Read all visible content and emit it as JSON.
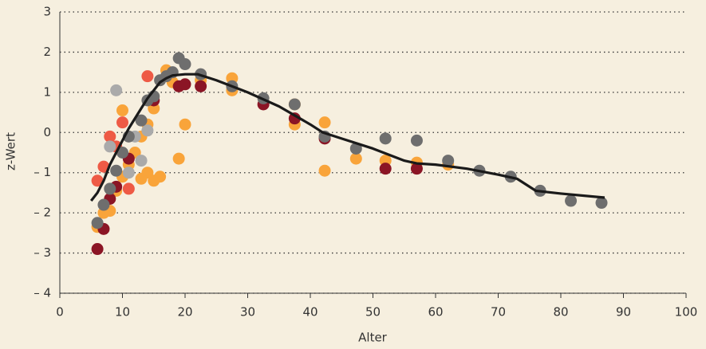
{
  "chart_data": {
    "type": "scatter",
    "x_label": "Alter",
    "y_label": "z-Wert",
    "xlim": [
      0,
      100
    ],
    "xticks": [
      0,
      10,
      20,
      30,
      40,
      50,
      60,
      70,
      80,
      90,
      100
    ],
    "ylim": [
      -4,
      3
    ],
    "yticks": [
      {
        "value": -4,
        "label": "– 4"
      },
      {
        "value": -3,
        "label": "– 3"
      },
      {
        "value": -2,
        "label": "– 2"
      },
      {
        "value": -1,
        "label": "– 1"
      },
      0,
      1,
      2,
      3
    ],
    "grid": true,
    "series": [
      {
        "style": "dots",
        "color": "#f9a43a",
        "x": [
          6,
          7,
          8,
          9,
          10,
          11,
          12,
          13,
          14,
          15,
          16,
          17,
          18,
          19,
          20,
          22.5,
          27.5,
          27.5,
          37.5,
          37.5,
          42.3,
          42.3,
          47.3,
          52,
          57,
          62,
          13,
          14,
          15,
          10
        ],
        "values": [
          -2.35,
          -2.0,
          -1.95,
          -1.45,
          -1.1,
          -0.8,
          -0.5,
          -1.15,
          -1.0,
          -1.2,
          -1.1,
          1.55,
          1.25,
          -0.65,
          0.2,
          1.3,
          1.35,
          1.05,
          0.2,
          0.7,
          0.25,
          -0.95,
          -0.65,
          -0.7,
          -0.75,
          -0.8,
          -0.1,
          0.2,
          0.6,
          0.55
        ]
      },
      {
        "style": "dots",
        "color": "#ee5a45",
        "x": [
          6,
          7,
          8,
          9,
          10,
          11,
          14
        ],
        "values": [
          -1.2,
          -0.85,
          -0.1,
          -0.35,
          0.25,
          -1.4,
          1.4
        ]
      },
      {
        "style": "dots",
        "color": "#aaaaaa",
        "x": [
          9,
          8,
          11,
          12,
          13,
          14
        ],
        "values": [
          1.05,
          -0.35,
          -1.0,
          -0.1,
          -0.7,
          0.05
        ]
      },
      {
        "style": "dots",
        "color": "#8b1525",
        "x": [
          6,
          7,
          8,
          9,
          11,
          15,
          19,
          20,
          22.5,
          32.5,
          37.5,
          42.3,
          52,
          57
        ],
        "values": [
          -2.9,
          -2.4,
          -1.65,
          -1.35,
          -0.65,
          0.8,
          1.15,
          1.2,
          1.15,
          0.7,
          0.35,
          -0.15,
          -0.9,
          -0.9
        ]
      },
      {
        "style": "dots",
        "color": "#6e6e6e",
        "x": [
          6,
          7,
          8,
          9,
          10,
          11,
          13,
          14,
          15,
          16,
          17,
          18,
          19,
          20,
          22.5,
          27.5,
          32.5,
          37.5,
          42.3,
          47.3,
          52,
          57,
          62,
          67,
          72,
          76.7,
          81.6,
          86.5
        ],
        "values": [
          -2.25,
          -1.8,
          -1.4,
          -0.95,
          -0.5,
          -0.1,
          0.3,
          0.8,
          0.9,
          1.3,
          1.4,
          1.5,
          1.85,
          1.7,
          1.45,
          1.15,
          0.85,
          0.7,
          -0.1,
          -0.4,
          -0.15,
          -0.2,
          -0.7,
          -0.95,
          -1.1,
          -1.45,
          -1.7,
          -1.75
        ]
      },
      {
        "style": "line",
        "color": "#1a1a1a",
        "x": [
          5,
          6,
          7,
          8,
          9,
          10,
          11,
          12,
          13,
          14,
          15,
          16,
          17,
          18,
          20,
          22,
          25,
          30,
          35,
          40,
          42,
          45,
          50,
          55,
          57,
          60,
          65,
          70,
          73,
          76,
          80,
          87
        ],
        "values": [
          -1.7,
          -1.5,
          -1.2,
          -0.8,
          -0.5,
          -0.2,
          0.1,
          0.35,
          0.6,
          0.85,
          1.05,
          1.25,
          1.35,
          1.42,
          1.45,
          1.45,
          1.3,
          1.0,
          0.65,
          0.2,
          0.0,
          -0.15,
          -0.4,
          -0.7,
          -0.77,
          -0.8,
          -0.9,
          -1.05,
          -1.15,
          -1.45,
          -1.52,
          -1.62
        ]
      }
    ]
  }
}
